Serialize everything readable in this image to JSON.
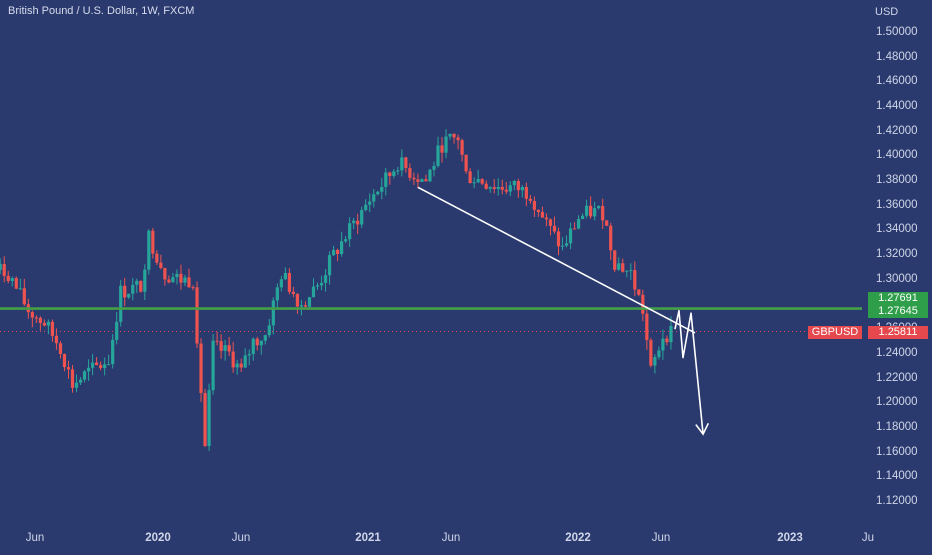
{
  "chart_data": {
    "type": "candlestick",
    "title": "British Pound / U.S. Dollar, 1W, FXCM",
    "y_unit": "USD",
    "symbol": "GBPUSD",
    "last_price": "1.25811",
    "support_labels": [
      "1.27691",
      "1.27645"
    ],
    "support_level": 1.2767,
    "ylim": [
      1.11,
      1.51
    ],
    "yticks": [
      "1.50000",
      "1.48000",
      "1.46000",
      "1.44000",
      "1.42000",
      "1.40000",
      "1.38000",
      "1.36000",
      "1.34000",
      "1.32000",
      "1.30000",
      "1.28000",
      "1.26000",
      "1.24000",
      "1.22000",
      "1.20000",
      "1.18000",
      "1.16000",
      "1.14000",
      "1.12000"
    ],
    "xticks": [
      {
        "label": "Jun",
        "bold": false
      },
      {
        "label": "2020",
        "bold": true
      },
      {
        "label": "Jun",
        "bold": false
      },
      {
        "label": "2021",
        "bold": true
      },
      {
        "label": "Jun",
        "bold": false
      },
      {
        "label": "2022",
        "bold": true
      },
      {
        "label": "Jun",
        "bold": false
      },
      {
        "label": "2023",
        "bold": true
      },
      {
        "label": "Ju",
        "bold": false
      }
    ],
    "path": [
      [
        "2019-03-18",
        1.31
      ],
      [
        "2019-04-15",
        1.305
      ],
      [
        "2019-05-20",
        1.275
      ],
      [
        "2019-06-17",
        1.265
      ],
      [
        "2019-07-15",
        1.245
      ],
      [
        "2019-08-05",
        1.215
      ],
      [
        "2019-09-02",
        1.225
      ],
      [
        "2019-10-07",
        1.235
      ],
      [
        "2019-10-28",
        1.29
      ],
      [
        "2019-12-02",
        1.295
      ],
      [
        "2019-12-16",
        1.335
      ],
      [
        "2020-01-13",
        1.305
      ],
      [
        "2020-02-10",
        1.3
      ],
      [
        "2020-03-02",
        1.3
      ],
      [
        "2020-03-23",
        1.165
      ],
      [
        "2020-04-06",
        1.245
      ],
      [
        "2020-05-04",
        1.24
      ],
      [
        "2020-05-25",
        1.225
      ],
      [
        "2020-06-15",
        1.25
      ],
      [
        "2020-07-06",
        1.255
      ],
      [
        "2020-08-03",
        1.305
      ],
      [
        "2020-09-07",
        1.28
      ],
      [
        "2020-10-05",
        1.295
      ],
      [
        "2020-11-02",
        1.32
      ],
      [
        "2020-12-07",
        1.345
      ],
      [
        "2021-01-04",
        1.365
      ],
      [
        "2021-02-08",
        1.385
      ],
      [
        "2021-02-22",
        1.395
      ],
      [
        "2021-03-22",
        1.385
      ],
      [
        "2021-04-12",
        1.38
      ],
      [
        "2021-05-10",
        1.41
      ],
      [
        "2021-06-07",
        1.415
      ],
      [
        "2021-06-21",
        1.385
      ],
      [
        "2021-07-19",
        1.38
      ],
      [
        "2021-08-16",
        1.375
      ],
      [
        "2021-09-13",
        1.375
      ],
      [
        "2021-10-11",
        1.37
      ],
      [
        "2021-11-08",
        1.345
      ],
      [
        "2021-12-06",
        1.325
      ],
      [
        "2022-01-03",
        1.35
      ],
      [
        "2022-01-24",
        1.355
      ],
      [
        "2022-02-14",
        1.355
      ],
      [
        "2022-03-07",
        1.315
      ],
      [
        "2022-04-04",
        1.305
      ],
      [
        "2022-04-25",
        1.275
      ],
      [
        "2022-05-09",
        1.225
      ],
      [
        "2022-05-30",
        1.255
      ],
      [
        "2022-06-13",
        1.258
      ]
    ],
    "trendline": [
      [
        "2021-03-29",
        1.375
      ],
      [
        "2022-07-25",
        1.257
      ]
    ],
    "projection": [
      [
        "2022-06-20",
        1.26
      ],
      [
        "2022-06-27",
        1.275
      ],
      [
        "2022-07-04",
        1.237
      ],
      [
        "2022-07-18",
        1.273
      ],
      [
        "2022-08-08",
        1.175
      ]
    ],
    "grid": false,
    "legend": "none"
  }
}
